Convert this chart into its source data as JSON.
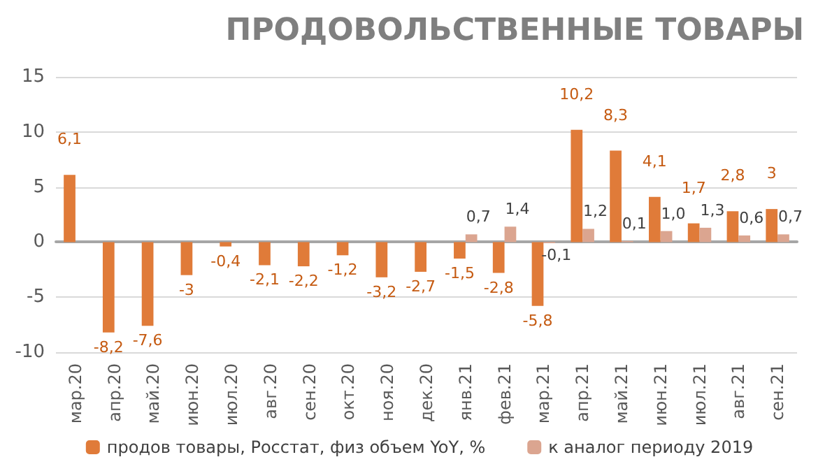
{
  "chart_data": {
    "type": "bar",
    "title": "ПРОДОВОЛЬСТВЕННЫЕ ТОВАРЫ",
    "categories": [
      "мар.20",
      "апр.20",
      "май.20",
      "июн.20",
      "июл.20",
      "авг.20",
      "сен.20",
      "окт.20",
      "ноя.20",
      "дек.20",
      "янв.21",
      "фев.21",
      "мар.21",
      "апр.21",
      "май.21",
      "июн.21",
      "июл.21",
      "авг.21",
      "сен.21"
    ],
    "series": [
      {
        "name": "продов товары, Росстат, физ объем YoY, %",
        "color": "#e07b39",
        "values": [
          6.1,
          -8.2,
          -7.6,
          -3,
          -0.4,
          -2.1,
          -2.2,
          -1.2,
          -3.2,
          -2.7,
          -1.5,
          -2.8,
          -5.8,
          10.2,
          8.3,
          4.1,
          1.7,
          2.8,
          3
        ],
        "value_labels": [
          "6,1",
          "-8,2",
          "-7,6",
          "-3",
          "-0,4",
          "-2,1",
          "-2,2",
          "-1,2",
          "-3,2",
          "-2,7",
          "-1,5",
          "-2,8",
          "-5,8",
          "10,2",
          "8,3",
          "4,1",
          "1,7",
          "2,8",
          "3"
        ]
      },
      {
        "name": "к аналог периоду 2019",
        "color": "#dba590",
        "values": [
          null,
          null,
          null,
          null,
          null,
          null,
          null,
          null,
          null,
          null,
          0.7,
          1.4,
          -0.1,
          1.2,
          0.1,
          1.0,
          1.3,
          0.6,
          0.7
        ],
        "value_labels": [
          null,
          null,
          null,
          null,
          null,
          null,
          null,
          null,
          null,
          null,
          "0,7",
          "1,4",
          "-0,1",
          "1,2",
          "0,1",
          "1,0",
          "1,3",
          "0,6",
          "0,7"
        ]
      }
    ],
    "ylim": [
      -10,
      15
    ],
    "yticks": [
      -10,
      -5,
      0,
      5,
      10,
      15
    ],
    "grid": "y",
    "legend": "bottom"
  }
}
